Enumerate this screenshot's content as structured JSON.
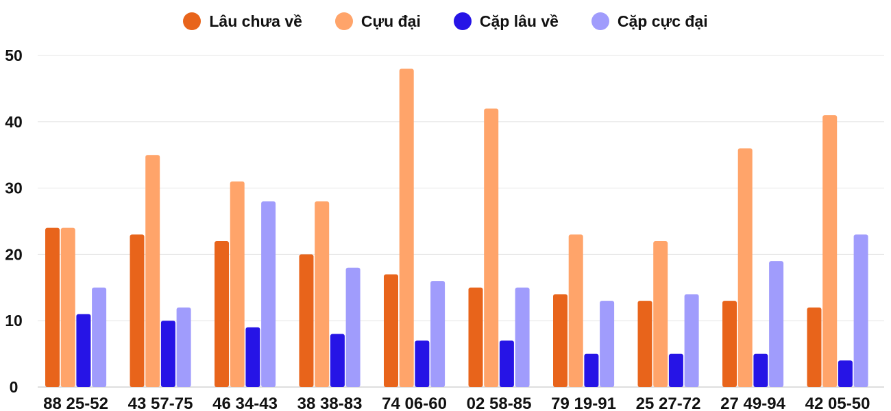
{
  "chart_data": {
    "type": "bar",
    "title": "",
    "xlabel": "",
    "ylabel": "",
    "ylim": [
      0,
      50
    ],
    "yticks": [
      0,
      10,
      20,
      30,
      40,
      50
    ],
    "grid": true,
    "legend_position": "top-center",
    "categories": [
      "88 25-52",
      "43 57-75",
      "46 34-43",
      "38 38-83",
      "74 06-60",
      "02 58-85",
      "79 19-91",
      "25 27-72",
      "27 49-94",
      "42 05-50"
    ],
    "series": [
      {
        "name": "Lâu chưa về",
        "color": "#e8641b",
        "values": [
          24,
          23,
          22,
          20,
          17,
          15,
          14,
          13,
          13,
          12
        ]
      },
      {
        "name": "Cựu đại",
        "color": "#ffa46a",
        "values": [
          24,
          35,
          31,
          28,
          48,
          42,
          23,
          22,
          36,
          41
        ]
      },
      {
        "name": "Cặp lâu về",
        "color": "#2614e6",
        "values": [
          11,
          10,
          9,
          8,
          7,
          7,
          5,
          5,
          5,
          4
        ]
      },
      {
        "name": "Cặp cực đại",
        "color": "#a09cfc",
        "values": [
          15,
          12,
          28,
          18,
          16,
          15,
          13,
          14,
          19,
          23
        ]
      }
    ]
  }
}
